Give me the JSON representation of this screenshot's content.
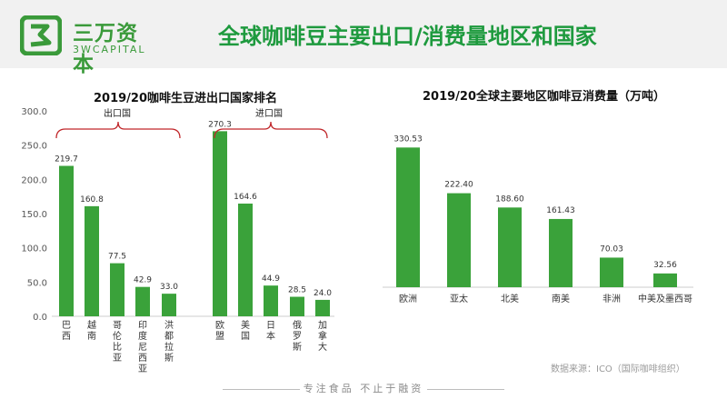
{
  "header": {
    "logo_cn": "三万资本",
    "logo_en": "3WCAPITAL",
    "title": "全球咖啡豆主要出口/消费量地区和国家"
  },
  "colors": {
    "bar": "#3aa23a",
    "title_green": "#1e9a3e",
    "bracket": "#c0262a",
    "header_bg": "#f1f1f1"
  },
  "footer": {
    "source": "数据来源：ICO（国际咖啡组织）",
    "slogan": "专注食品 不止于融资"
  },
  "chart_data": [
    {
      "type": "bar",
      "title": "2019/20咖啡生豆进出口国家排名",
      "categories": [
        "巴西",
        "越南",
        "哥伦比亚",
        "印度尼西亚",
        "洪都拉斯",
        "欧盟",
        "美国",
        "日本",
        "俄罗斯",
        "加拿大"
      ],
      "values": [
        219.7,
        160.8,
        77.5,
        42.9,
        33.0,
        270.3,
        164.6,
        44.9,
        28.5,
        24.0
      ],
      "value_labels": [
        "219.7",
        "160.8",
        "77.5",
        "42.9",
        "33.0",
        "270.3",
        "164.6",
        "44.9",
        "28.5",
        "24.0"
      ],
      "yticks": [
        "0.0",
        "50.0",
        "100.0",
        "150.0",
        "200.0",
        "250.0",
        "300.0"
      ],
      "ylim": [
        0,
        300
      ],
      "groups": [
        {
          "label": "出口国",
          "indices": [
            0,
            1,
            2,
            3,
            4
          ]
        },
        {
          "label": "进口国",
          "indices": [
            5,
            6,
            7,
            8,
            9
          ]
        }
      ],
      "grid": false
    },
    {
      "type": "bar",
      "title": "2019/20全球主要地区咖啡豆消费量（万吨）",
      "categories": [
        "欧洲",
        "亚太",
        "北美",
        "南美",
        "非洲",
        "中美及墨西哥"
      ],
      "values": [
        330.53,
        222.4,
        188.6,
        161.43,
        70.03,
        32.56
      ],
      "value_labels": [
        "330.53",
        "222.40",
        "188.60",
        "161.43",
        "70.03",
        "32.56"
      ],
      "ylim": [
        0,
        400
      ],
      "grid": false
    }
  ]
}
